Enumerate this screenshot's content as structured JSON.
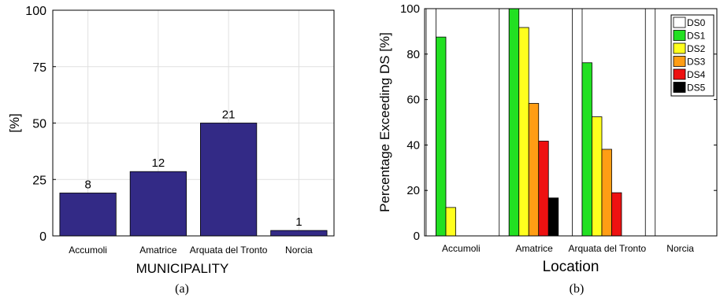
{
  "chart_data": [
    {
      "type": "bar",
      "caption": "(a)",
      "xlabel": "MUNICIPALITY",
      "ylabel": "[%]",
      "ylim": [
        0,
        100
      ],
      "yticks": [
        0,
        25,
        50,
        75,
        100
      ],
      "grid": true,
      "categories": [
        "Accumoli",
        "Amatrice",
        "Arquata del Tronto",
        "Norcia"
      ],
      "values": [
        19,
        28.5,
        50,
        2.4
      ],
      "data_labels": [
        "8",
        "12",
        "21",
        "1"
      ],
      "bar_color": "#332a86"
    },
    {
      "type": "bar",
      "caption": "(b)",
      "xlabel": "Location",
      "ylabel": "Percentage Exceeding DS [%]",
      "ylim": [
        0,
        100
      ],
      "yticks": [
        0,
        20,
        40,
        60,
        80,
        100
      ],
      "grid": false,
      "legend_position": "top-right",
      "categories": [
        "Accumoli",
        "Amatrice",
        "Arquata del Tronto",
        "Norcia"
      ],
      "series": [
        {
          "name": "DS0",
          "color": "#ffffff",
          "values": [
            100,
            100,
            100,
            100
          ]
        },
        {
          "name": "DS1",
          "color": "#22e022",
          "values": [
            87.5,
            100,
            76.2,
            0
          ]
        },
        {
          "name": "DS2",
          "color": "#ffff1e",
          "values": [
            12.5,
            91.7,
            52.4,
            0
          ]
        },
        {
          "name": "DS3",
          "color": "#ff9d14",
          "values": [
            0,
            58.3,
            38.1,
            0
          ]
        },
        {
          "name": "DS4",
          "color": "#ee1111",
          "values": [
            0,
            41.7,
            19.0,
            0
          ]
        },
        {
          "name": "DS5",
          "color": "#000000",
          "values": [
            0,
            16.7,
            0,
            0
          ]
        }
      ]
    }
  ]
}
